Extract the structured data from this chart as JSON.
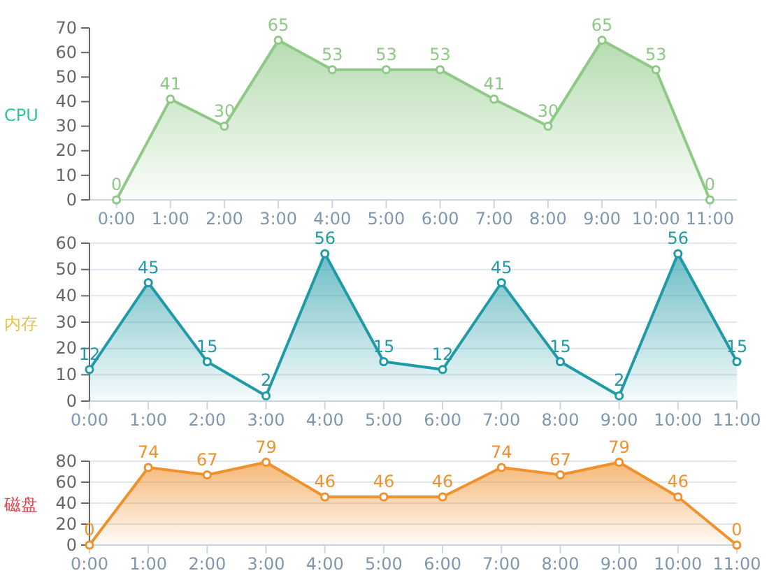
{
  "chart_data": [
    {
      "type": "area",
      "ylabel": "CPU",
      "categories": [
        "0:00",
        "1:00",
        "2:00",
        "3:00",
        "4:00",
        "5:00",
        "6:00",
        "7:00",
        "8:00",
        "9:00",
        "10:00",
        "11:00"
      ],
      "series": [
        {
          "color": "#8ec986",
          "values": [
            0,
            41,
            30,
            65,
            53,
            53,
            53,
            41,
            30,
            65,
            53,
            0
          ]
        }
      ],
      "ylim": [
        0,
        70
      ],
      "yticks": [
        0,
        10,
        20,
        30,
        40,
        50,
        60,
        70
      ],
      "grid": false,
      "marker": "circle",
      "data_labels": true
    },
    {
      "type": "area",
      "ylabel": "内存",
      "categories": [
        "0:00",
        "1:00",
        "2:00",
        "3:00",
        "4:00",
        "5:00",
        "6:00",
        "7:00",
        "8:00",
        "9:00",
        "10:00",
        "11:00"
      ],
      "series": [
        {
          "color": "#1f9aa6",
          "values": [
            12,
            45,
            15,
            2,
            56,
            15,
            12,
            45,
            15,
            2,
            56,
            15
          ]
        }
      ],
      "ylim": [
        0,
        60
      ],
      "yticks": [
        0,
        10,
        20,
        30,
        40,
        50,
        60
      ],
      "grid": "y",
      "marker": "circle",
      "data_labels": true
    },
    {
      "type": "area",
      "ylabel": "磁盘",
      "categories": [
        "0:00",
        "1:00",
        "2:00",
        "3:00",
        "4:00",
        "5:00",
        "6:00",
        "7:00",
        "8:00",
        "9:00",
        "10:00",
        "11:00"
      ],
      "series": [
        {
          "color": "#ef922e",
          "values": [
            0,
            74,
            67,
            79,
            46,
            46,
            46,
            74,
            67,
            79,
            46,
            0
          ]
        }
      ],
      "ylim": [
        0,
        80
      ],
      "yticks": [
        0,
        20,
        40,
        60,
        80
      ],
      "grid": "y",
      "marker": "circle",
      "data_labels": true
    }
  ]
}
